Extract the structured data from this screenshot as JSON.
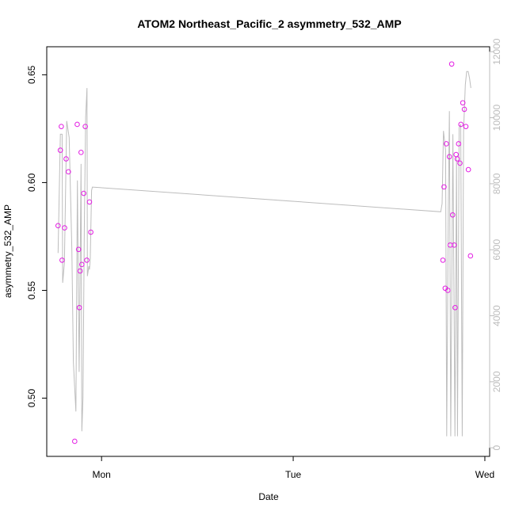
{
  "chart_data": {
    "type": "scatter",
    "title": "ATOM2 Northeast_Pacific_2 asymmetry_532_AMP",
    "xlabel": "Date",
    "ylabel": "asymmetry_532_AMP",
    "x_ticks": [
      {
        "label": "Mon",
        "t": 1.0
      },
      {
        "label": "Tue",
        "t": 2.0
      },
      {
        "label": "Wed",
        "t": 3.0
      }
    ],
    "xlim": [
      0.714,
      3.025
    ],
    "ylim": [
      0.473,
      0.663
    ],
    "y_ticks": [
      0.5,
      0.55,
      0.6,
      0.65
    ],
    "y_tick_labels": [
      "0.50",
      "0.55",
      "0.60",
      "0.65"
    ],
    "y2lim": [
      -260,
      12150
    ],
    "y2_ticks": [
      0,
      2000,
      4000,
      6000,
      8000,
      10000,
      12000
    ],
    "y2_tick_labels": [
      "0",
      "2000",
      "4000",
      "6000",
      "8000",
      "10000",
      "12000"
    ],
    "colors": {
      "points": "#e31ce3",
      "line": "#bdbdbd",
      "right_axis": "#bdbdbd"
    },
    "series": [
      {
        "marker": "circle",
        "axis": "left",
        "points": [
          [
            0.773,
            0.58
          ],
          [
            0.785,
            0.615
          ],
          [
            0.79,
            0.626
          ],
          [
            0.794,
            0.564
          ],
          [
            0.807,
            0.579
          ],
          [
            0.815,
            0.611
          ],
          [
            0.827,
            0.605
          ],
          [
            0.86,
            0.48
          ],
          [
            0.873,
            0.627
          ],
          [
            0.88,
            0.569
          ],
          [
            0.884,
            0.542
          ],
          [
            0.888,
            0.559
          ],
          [
            0.893,
            0.614
          ],
          [
            0.897,
            0.562
          ],
          [
            0.907,
            0.595
          ],
          [
            0.915,
            0.626
          ],
          [
            0.923,
            0.564
          ],
          [
            0.937,
            0.591
          ],
          [
            0.944,
            0.577
          ],
          [
            2.781,
            0.564
          ],
          [
            2.787,
            0.598
          ],
          [
            2.793,
            0.551
          ],
          [
            2.799,
            0.618
          ],
          [
            2.807,
            0.55
          ],
          [
            2.815,
            0.612
          ],
          [
            2.819,
            0.571
          ],
          [
            2.827,
            0.655
          ],
          [
            2.832,
            0.585
          ],
          [
            2.84,
            0.571
          ],
          [
            2.845,
            0.542
          ],
          [
            2.85,
            0.613
          ],
          [
            2.856,
            0.611
          ],
          [
            2.863,
            0.618
          ],
          [
            2.87,
            0.609
          ],
          [
            2.875,
            0.627
          ],
          [
            2.885,
            0.637
          ],
          [
            2.893,
            0.634
          ],
          [
            2.901,
            0.626
          ],
          [
            2.914,
            0.606
          ],
          [
            2.925,
            0.566
          ]
        ]
      },
      {
        "type": "line",
        "axis": "right",
        "points": [
          [
            0.773,
            5900
          ],
          [
            0.785,
            9500
          ],
          [
            0.794,
            9500
          ],
          [
            0.797,
            5000
          ],
          [
            0.806,
            5600
          ],
          [
            0.818,
            9900
          ],
          [
            0.831,
            9400
          ],
          [
            0.845,
            6000
          ],
          [
            0.853,
            2600
          ],
          [
            0.866,
            1100
          ],
          [
            0.874,
            8100
          ],
          [
            0.879,
            4800
          ],
          [
            0.883,
            2300
          ],
          [
            0.886,
            4000
          ],
          [
            0.893,
            8600
          ],
          [
            0.897,
            500
          ],
          [
            0.903,
            1500
          ],
          [
            0.91,
            6600
          ],
          [
            0.917,
            10000
          ],
          [
            0.924,
            10900
          ],
          [
            0.926,
            5200
          ],
          [
            0.934,
            5500
          ],
          [
            0.937,
            5400
          ],
          [
            0.941,
            5700
          ],
          [
            0.948,
            7800
          ],
          [
            0.952,
            7900
          ],
          [
            2.77,
            7150
          ],
          [
            2.777,
            7400
          ],
          [
            2.784,
            9600
          ],
          [
            2.795,
            9000
          ],
          [
            2.801,
            350
          ],
          [
            2.809,
            7200
          ],
          [
            2.815,
            10200
          ],
          [
            2.822,
            350
          ],
          [
            2.833,
            9500
          ],
          [
            2.844,
            350
          ],
          [
            2.852,
            8800
          ],
          [
            2.857,
            350
          ],
          [
            2.866,
            9700
          ],
          [
            2.874,
            9800
          ],
          [
            2.882,
            350
          ],
          [
            2.889,
            9600
          ],
          [
            2.898,
            11000
          ],
          [
            2.905,
            11400
          ],
          [
            2.913,
            11400
          ],
          [
            2.92,
            11200
          ],
          [
            2.927,
            10900
          ]
        ]
      }
    ],
    "grid": false,
    "legend": "none"
  }
}
